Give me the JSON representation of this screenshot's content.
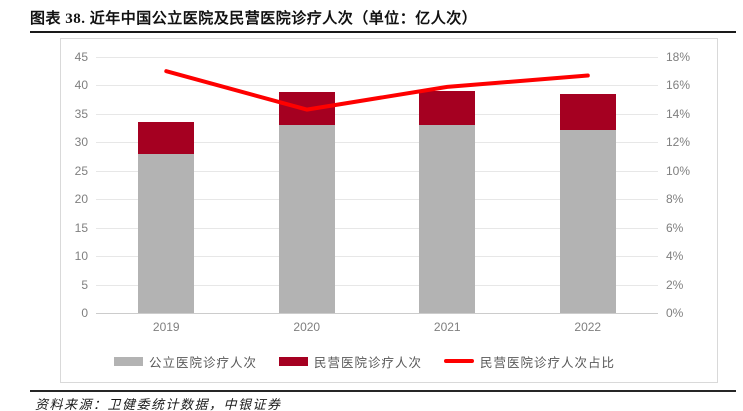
{
  "page": {
    "title": "图表 38. 近年中国公立医院及民营医院诊疗人次（单位：亿人次）",
    "source": "资料来源：卫健委统计数据，中银证券"
  },
  "colors": {
    "public_bar": "#b3b3b3",
    "private_bar": "#a50021",
    "ratio_line": "#fe0000",
    "axis_text": "#7f7f7f",
    "gridline": "#e7e7e7"
  },
  "chart_data": {
    "type": "bar",
    "subtype": "stacked-bars-with-line-dual-axis",
    "title": "图表 38. 近年中国公立医院及民营医院诊疗人次（单位：亿人次）",
    "source_note": "资料来源：卫健委统计数据，中银证券",
    "categories": [
      "2019",
      "2020",
      "2021",
      "2022"
    ],
    "series": [
      {
        "name": "公立医院诊疗人次",
        "type": "bar",
        "axis": "left",
        "color": "#b3b3b3",
        "values": [
          28.0,
          33.1,
          33.0,
          32.1
        ]
      },
      {
        "name": "民营医院诊疗人次",
        "type": "bar",
        "axis": "left",
        "color": "#a50021",
        "values": [
          5.6,
          5.8,
          6.0,
          6.4
        ]
      },
      {
        "name": "民营医院诊疗人次占比",
        "type": "line",
        "axis": "right",
        "color": "#fe0000",
        "unit": "%",
        "values": [
          17.0,
          14.3,
          15.9,
          16.7
        ]
      }
    ],
    "left_axis": {
      "min": 0,
      "max": 45,
      "step": 5,
      "ticks": [
        "45",
        "40",
        "35",
        "30",
        "25",
        "20",
        "15",
        "10",
        "5",
        "0"
      ]
    },
    "right_axis": {
      "min": 0,
      "max": 18,
      "step": 2,
      "ticks": [
        "18%",
        "16%",
        "14%",
        "12%",
        "10%",
        "8%",
        "6%",
        "4%",
        "2%",
        "0%"
      ]
    },
    "grid": true,
    "legend_position": "bottom"
  }
}
